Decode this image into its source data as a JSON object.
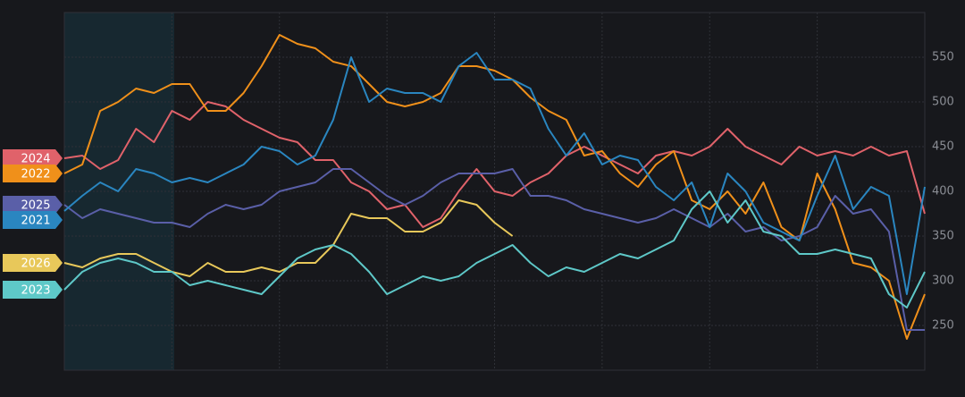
{
  "chart_data": {
    "type": "line",
    "x": [
      0,
      1,
      2,
      3,
      4,
      5,
      6,
      7,
      8,
      9,
      10,
      11,
      12,
      13,
      14,
      15,
      16,
      17,
      18,
      19,
      20,
      21,
      22,
      23,
      24,
      25,
      26,
      27,
      28,
      29,
      30,
      31,
      32,
      33,
      34,
      35,
      36,
      37,
      38,
      39,
      40,
      41,
      42,
      43,
      44,
      45,
      46,
      47,
      48
    ],
    "xlim": [
      0,
      48
    ],
    "xticks": [
      0,
      6,
      12,
      18,
      24,
      30,
      36,
      42,
      48
    ],
    "ylim": [
      200,
      600
    ],
    "yticks": [
      250,
      300,
      350,
      400,
      450,
      500,
      550
    ],
    "grid": true,
    "series": [
      {
        "name": "2024",
        "color": "#e0626a",
        "values": [
          437,
          440,
          425,
          435,
          470,
          455,
          490,
          480,
          500,
          495,
          480,
          470,
          460,
          455,
          435,
          435,
          410,
          400,
          380,
          385,
          360,
          370,
          400,
          425,
          400,
          395,
          410,
          420,
          440,
          450,
          440,
          430,
          420,
          440,
          445,
          440,
          450,
          470,
          450,
          440,
          430,
          450,
          440,
          445,
          440,
          450,
          440,
          445,
          375
        ]
      },
      {
        "name": "2022",
        "color": "#f0901a",
        "values": [
          420,
          430,
          490,
          500,
          515,
          510,
          520,
          520,
          490,
          490,
          510,
          540,
          575,
          565,
          560,
          545,
          540,
          520,
          500,
          495,
          500,
          510,
          540,
          540,
          535,
          525,
          505,
          490,
          480,
          440,
          445,
          420,
          405,
          430,
          445,
          390,
          380,
          400,
          375,
          410,
          360,
          345,
          420,
          380,
          320,
          315,
          300,
          235,
          285
        ]
      },
      {
        "name": "2025",
        "color": "#5a5fa8",
        "values": [
          385,
          370,
          380,
          375,
          370,
          365,
          365,
          360,
          375,
          385,
          380,
          385,
          400,
          405,
          410,
          425,
          425,
          410,
          395,
          385,
          395,
          410,
          420,
          420,
          420,
          425,
          395,
          395,
          390,
          380,
          375,
          370,
          365,
          370,
          380,
          370,
          360,
          375,
          355,
          360,
          345,
          350,
          360,
          395,
          375,
          380,
          355,
          245,
          245
        ]
      },
      {
        "name": "2021",
        "color": "#2a86c0",
        "values": [
          378,
          395,
          410,
          400,
          425,
          420,
          410,
          415,
          410,
          420,
          430,
          450,
          445,
          430,
          440,
          480,
          550,
          500,
          515,
          510,
          510,
          500,
          540,
          555,
          525,
          525,
          515,
          470,
          440,
          465,
          430,
          440,
          435,
          405,
          390,
          410,
          360,
          420,
          400,
          365,
          355,
          345,
          395,
          440,
          380,
          405,
          395,
          285,
          405
        ]
      },
      {
        "name": "2026",
        "color": "#e8c85a",
        "values": [
          320,
          315,
          325,
          330,
          330,
          320,
          310,
          305,
          320,
          310,
          310,
          315,
          310,
          320,
          320,
          340,
          375,
          370,
          370,
          355,
          355,
          365,
          390,
          385,
          365,
          350,
          null,
          null,
          null,
          null,
          null,
          null,
          null,
          null,
          null,
          null,
          null,
          null,
          null,
          null,
          null,
          null,
          null,
          null,
          null,
          null,
          null,
          null,
          null
        ]
      },
      {
        "name": "2023",
        "color": "#5ec8c8",
        "values": [
          290,
          310,
          320,
          325,
          320,
          310,
          310,
          295,
          300,
          295,
          290,
          285,
          305,
          325,
          335,
          340,
          330,
          310,
          285,
          295,
          305,
          300,
          305,
          320,
          330,
          340,
          320,
          305,
          315,
          310,
          320,
          330,
          325,
          335,
          345,
          380,
          400,
          365,
          390,
          355,
          350,
          330,
          330,
          335,
          330,
          325,
          285,
          270,
          310
        ]
      }
    ]
  }
}
